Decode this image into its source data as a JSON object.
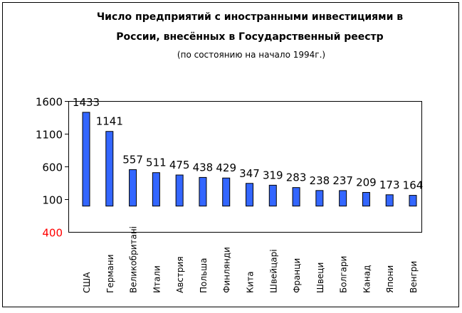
{
  "chart_data": {
    "type": "bar",
    "title": "Число предприятий с иностранными инвестициями в",
    "title_line2": "России, внесённых в Государственный реестр",
    "subtitle": "(по состоянию на начало 1994г.)",
    "xlabel": "",
    "ylabel": "",
    "ylim": [
      -400,
      1600
    ],
    "yticks": [
      1600,
      1100,
      600,
      100
    ],
    "ytick_labels": [
      "1600",
      "1100",
      "600",
      "100"
    ],
    "ymin_label": "400",
    "categories": [
      "США",
      "Германи",
      "Великобритані",
      "Итали",
      "Австрия",
      "Польша",
      "Финлянди",
      "Кита",
      "Швейцарі",
      "Франци",
      "Швеци",
      "Болгари",
      "Канад",
      "Япони",
      "Венгри"
    ],
    "values": [
      1433,
      1141,
      557,
      511,
      475,
      438,
      429,
      347,
      319,
      283,
      238,
      237,
      209,
      173,
      164
    ],
    "bar_color": "#3366ff",
    "grid": false,
    "legend": "none"
  }
}
